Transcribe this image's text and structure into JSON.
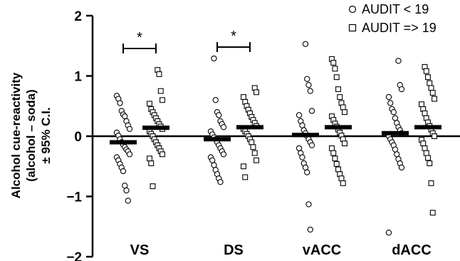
{
  "chart_data": {
    "type": "scatter",
    "title": "",
    "ylabel_lines": [
      "Alcohol cue-reactivity",
      "(alcohol – soda)",
      "± 95% C.I."
    ],
    "ylim": [
      -2,
      2
    ],
    "yticks": [
      {
        "value": 2,
        "label": "2"
      },
      {
        "value": 1,
        "label": "1"
      },
      {
        "value": 0,
        "label": "0"
      },
      {
        "value": -1,
        "label": "−1"
      },
      {
        "value": -2,
        "label": "−2"
      }
    ],
    "categories": [
      "VS",
      "DS",
      "vACC",
      "dACC"
    ],
    "legend_position": "top-right",
    "series": [
      {
        "name": "AUDIT < 19",
        "marker": "circle",
        "means": [
          -0.1,
          -0.05,
          0.02,
          0.05
        ],
        "values": [
          [
            0.67,
            0.62,
            0.55,
            0.42,
            0.36,
            0.33,
            0.25,
            0.18,
            0.12,
            0.06,
            0.01,
            -0.05,
            -0.1,
            -0.14,
            -0.18,
            -0.22,
            -0.25,
            -0.3,
            -0.35,
            -0.4,
            -0.46,
            -0.52,
            -0.58,
            -0.82,
            -0.9,
            -1.07
          ],
          [
            1.29,
            0.6,
            0.4,
            0.35,
            0.25,
            0.2,
            0.15,
            0.08,
            0.03,
            -0.02,
            -0.05,
            -0.1,
            -0.15,
            -0.2,
            -0.25,
            -0.3,
            -0.35,
            -0.4,
            -0.48,
            -0.56,
            -0.63,
            -0.7,
            -0.76
          ],
          [
            1.53,
            0.95,
            0.85,
            0.75,
            0.42,
            0.35,
            0.25,
            0.18,
            0.1,
            0.05,
            0.0,
            -0.05,
            -0.1,
            -0.15,
            -0.2,
            -0.28,
            -0.35,
            -0.45,
            -0.52,
            -0.6,
            -1.13,
            -1.55
          ],
          [
            1.25,
            0.85,
            0.78,
            0.65,
            0.55,
            0.45,
            0.4,
            0.3,
            0.22,
            0.15,
            0.1,
            0.05,
            0.0,
            -0.05,
            -0.1,
            -0.15,
            -0.22,
            -0.3,
            -0.38,
            -0.45,
            -0.52,
            -1.6
          ]
        ]
      },
      {
        "name": "AUDIT => 19",
        "marker": "square",
        "means": [
          0.14,
          0.15,
          0.15,
          0.15
        ],
        "values": [
          [
            1.1,
            1.03,
            0.75,
            0.6,
            0.54,
            0.45,
            0.4,
            0.35,
            0.3,
            0.25,
            0.2,
            0.16,
            0.12,
            0.08,
            0.04,
            0.0,
            -0.05,
            -0.1,
            -0.15,
            -0.2,
            -0.25,
            -0.3,
            -0.37,
            -0.45,
            -0.83
          ],
          [
            0.8,
            0.73,
            0.65,
            0.57,
            0.5,
            0.44,
            0.38,
            0.32,
            0.27,
            0.22,
            0.17,
            0.12,
            0.08,
            0.04,
            0.0,
            -0.05,
            -0.1,
            -0.18,
            -0.28,
            -0.4,
            -0.5,
            -0.68
          ],
          [
            1.28,
            1.22,
            1.12,
            0.98,
            0.78,
            0.65,
            0.55,
            0.48,
            0.4,
            0.33,
            0.27,
            0.21,
            0.16,
            0.11,
            0.06,
            0.01,
            -0.05,
            -0.12,
            -0.2,
            -0.28,
            -0.37,
            -0.46,
            -0.55,
            -0.63,
            -0.7,
            -0.78
          ],
          [
            1.15,
            1.08,
            0.98,
            0.88,
            0.8,
            0.72,
            0.62,
            0.53,
            0.45,
            0.38,
            0.3,
            0.23,
            0.17,
            0.11,
            0.05,
            0.0,
            -0.06,
            -0.12,
            -0.2,
            -0.28,
            -0.36,
            -0.45,
            -0.78,
            -1.27
          ]
        ]
      }
    ],
    "significance": [
      {
        "category_index": 0,
        "label": "*"
      },
      {
        "category_index": 1,
        "label": "*"
      }
    ]
  }
}
